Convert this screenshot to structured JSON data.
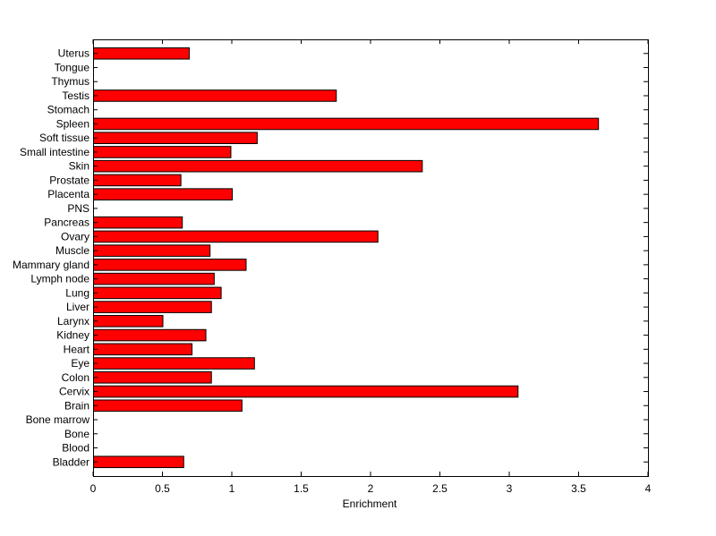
{
  "chart_data": {
    "type": "bar",
    "orientation": "horizontal",
    "title": "",
    "xlabel": "Enrichment",
    "ylabel": "",
    "xlim": [
      0,
      4
    ],
    "xticks": [
      0,
      0.5,
      1,
      1.5,
      2,
      2.5,
      3,
      3.5,
      4
    ],
    "xtick_labels": [
      "0",
      "0.5",
      "1",
      "1.5",
      "2",
      "2.5",
      "3",
      "3.5",
      "4"
    ],
    "grid": false,
    "bar_color": "#ff0000",
    "bar_edge_color": "#000000",
    "categories": [
      "Bladder",
      "Blood",
      "Bone",
      "Bone marrow",
      "Brain",
      "Cervix",
      "Colon",
      "Eye",
      "Heart",
      "Kidney",
      "Larynx",
      "Liver",
      "Lung",
      "Lymph node",
      "Mammary gland",
      "Muscle",
      "Ovary",
      "Pancreas",
      "PNS",
      "Placenta",
      "Prostate",
      "Skin",
      "Small intestine",
      "Soft tissue",
      "Spleen",
      "Stomach",
      "Testis",
      "Thymus",
      "Tongue",
      "Uterus"
    ],
    "values": [
      0.65,
      0,
      0,
      0,
      1.07,
      3.06,
      0.85,
      1.16,
      0.71,
      0.81,
      0.5,
      0.85,
      0.92,
      0.87,
      1.1,
      0.84,
      2.05,
      0.64,
      0,
      1.0,
      0.63,
      2.37,
      0.99,
      1.18,
      3.64,
      0,
      1.75,
      0,
      0,
      0.69
    ]
  }
}
